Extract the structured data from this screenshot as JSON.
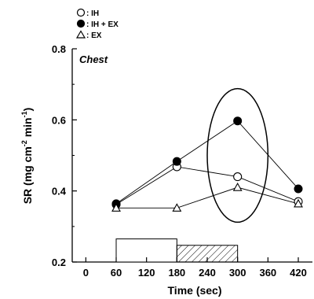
{
  "chart_data": {
    "type": "line",
    "panel_label": "Chest",
    "xlabel": "Time (sec)",
    "ylabel": "SR (mg cm",
    "ylabel_sup1": "-2",
    "ylabel_mid": " min",
    "ylabel_sup2": "-1",
    "ylabel_end": ")",
    "xlim": [
      -30,
      435
    ],
    "ylim": [
      0.2,
      0.8
    ],
    "x_ticks": [
      0,
      60,
      120,
      180,
      240,
      300,
      360,
      420
    ],
    "y_ticks": [
      0.2,
      0.4,
      0.6,
      0.8
    ],
    "y_tick_labels": [
      "0.2",
      "0.4",
      "0.6",
      "0.8"
    ],
    "legend": [
      "IH",
      "IH + EX",
      "EX"
    ],
    "series": [
      {
        "name": "IH",
        "marker": "open-circle",
        "x": [
          60,
          180,
          300,
          420
        ],
        "y": [
          0.362,
          0.468,
          0.44,
          0.37
        ]
      },
      {
        "name": "IH + EX",
        "marker": "filled-circle",
        "x": [
          60,
          180,
          300,
          420
        ],
        "y": [
          0.364,
          0.483,
          0.597,
          0.406
        ]
      },
      {
        "name": "EX",
        "marker": "open-triangle",
        "x": [
          60,
          180,
          300,
          420
        ],
        "y": [
          0.352,
          0.352,
          0.41,
          0.364
        ]
      }
    ],
    "protocol_bars": [
      {
        "pattern": "open",
        "x_start": 60,
        "x_end": 180,
        "top": 0.265
      },
      {
        "pattern": "hatched",
        "x_start": 180,
        "x_end": 300,
        "top": 0.247
      }
    ],
    "highlight_ellipse": {
      "x_center": 300,
      "y_center": 0.5,
      "x_radius": 60,
      "y_radius": 0.188
    }
  }
}
